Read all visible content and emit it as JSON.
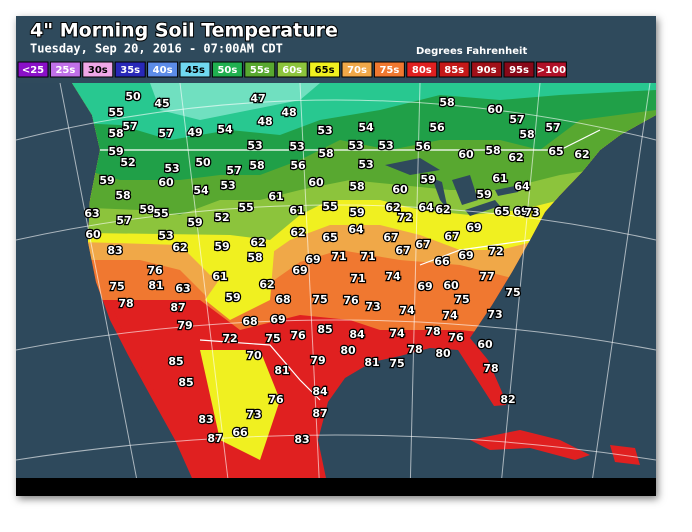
{
  "header": {
    "title": "4\" Morning Soil Temperature",
    "subtitle": "Tuesday, Sep 20, 2016 - 07:00AM CDT",
    "units": "Degrees Fahrenheit"
  },
  "legend": [
    {
      "label": "<25",
      "color": "#8a10c8"
    },
    {
      "label": "25s",
      "color": "#c070e8"
    },
    {
      "label": "30s",
      "color": "#f0a8e8"
    },
    {
      "label": "35s",
      "color": "#2828b8"
    },
    {
      "label": "40s",
      "color": "#5c8ce8"
    },
    {
      "label": "45s",
      "color": "#70d8f0"
    },
    {
      "label": "50s",
      "color": "#20b050"
    },
    {
      "label": "55s",
      "color": "#58a830"
    },
    {
      "label": "60s",
      "color": "#8cc43c"
    },
    {
      "label": "65s",
      "color": "#f0f020"
    },
    {
      "label": "70s",
      "color": "#f0a848"
    },
    {
      "label": "75s",
      "color": "#f07830"
    },
    {
      "label": "80s",
      "color": "#e02020"
    },
    {
      "label": "85s",
      "color": "#c41818"
    },
    {
      "label": "90s",
      "color": "#a01018"
    },
    {
      "label": "95s",
      "color": "#880818"
    },
    {
      "label": ">100",
      "color": "#b01028"
    }
  ],
  "readings": [
    50,
    45,
    47,
    58,
    60,
    57,
    57,
    55,
    57,
    48,
    48,
    53,
    54,
    56,
    58,
    65,
    62,
    58,
    57,
    49,
    54,
    53,
    53,
    58,
    53,
    53,
    56,
    58,
    62,
    59,
    52,
    53,
    50,
    57,
    58,
    56,
    53,
    60,
    59,
    60,
    54,
    53,
    60,
    58,
    60,
    59,
    61,
    64,
    58,
    61,
    62,
    64,
    62,
    59,
    69,
    63,
    57,
    59,
    55,
    59,
    52,
    55,
    61,
    55,
    59,
    72,
    65,
    73,
    60,
    53,
    62,
    65,
    64,
    67,
    67,
    67,
    69,
    72,
    83,
    62,
    59,
    62,
    58,
    69,
    71,
    71,
    67,
    66,
    69,
    76,
    69,
    71,
    74,
    77,
    75,
    81,
    63,
    61,
    62,
    69,
    60,
    75,
    75,
    78,
    87,
    59,
    68,
    75,
    76,
    73,
    74,
    74,
    73,
    79,
    68,
    69,
    85,
    84,
    74,
    78,
    76,
    72,
    75,
    76,
    80,
    85,
    70,
    79,
    81,
    75,
    78,
    80,
    60,
    81,
    78,
    85,
    84,
    76,
    87,
    82,
    83,
    73,
    87,
    66,
    83
  ]
}
